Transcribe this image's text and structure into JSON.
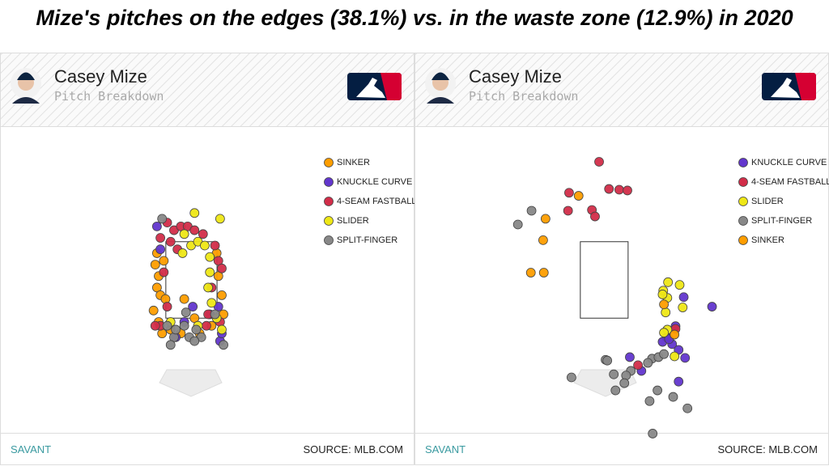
{
  "title": "Mize's pitches on the edges (38.1%) vs. in the waste zone (12.9%) in 2020",
  "chart_data": [
    {
      "type": "scatter",
      "player": "Casey Mize",
      "subtitle": "Pitch Breakdown",
      "brand": "SAVANT",
      "source": "SOURCE: MLB.COM",
      "xlim": [
        -5.6,
        6.5
      ],
      "ylim": [
        -1.5,
        6.5
      ],
      "zone": {
        "x": [
          -0.74,
          0.76
        ],
        "y": [
          1.5,
          3.5
        ]
      },
      "series": [
        {
          "name": "SINKER",
          "color": "#fe9d00",
          "x": [
            -1.0,
            -1.05,
            -0.95,
            -1.0,
            -0.9,
            -1.1,
            -0.95,
            -0.8,
            -0.75,
            -0.6,
            -0.3,
            0.25,
            0.6,
            0.8,
            0.9,
            0.75,
            -0.2,
            0.1,
            0.95,
            -0.85
          ],
          "y": [
            3.2,
            2.9,
            2.6,
            2.3,
            2.1,
            1.7,
            1.4,
            3.0,
            2.0,
            1.2,
            1.1,
            1.1,
            1.3,
            2.6,
            2.1,
            3.2,
            2.0,
            1.5,
            1.6,
            1.1
          ]
        },
        {
          "name": "KNUCKLE CURVE",
          "color": "#6236cd",
          "x": [
            -1.0,
            -0.9,
            0.05,
            -0.2,
            0.55,
            0.8,
            0.85,
            -0.45,
            0.9
          ],
          "y": [
            3.9,
            3.3,
            1.8,
            1.4,
            1.6,
            1.8,
            0.9,
            1.0,
            1.1
          ]
        },
        {
          "name": "4-SEAM FASTBALL",
          "color": "#d22d49",
          "x": [
            -0.7,
            -0.5,
            -0.3,
            -0.1,
            0.1,
            0.35,
            -0.6,
            -0.9,
            0.7,
            0.8,
            0.9,
            -0.8,
            -0.9,
            -1.05,
            0.6,
            0.85,
            0.45,
            -0.4,
            0.5,
            -0.7
          ],
          "y": [
            4.0,
            3.8,
            3.9,
            3.9,
            3.8,
            3.7,
            3.5,
            3.6,
            3.4,
            3.0,
            2.8,
            2.7,
            1.3,
            1.3,
            2.3,
            1.4,
            1.3,
            3.3,
            1.6,
            1.8
          ]
        },
        {
          "name": "SLIDER",
          "color": "#eee716",
          "x": [
            0.1,
            0.85,
            -0.2,
            0.0,
            0.2,
            0.4,
            -0.25,
            0.55,
            0.55,
            0.5,
            0.6,
            0.75,
            0.2,
            -0.6,
            0.9
          ],
          "y": [
            4.25,
            4.1,
            3.7,
            3.4,
            3.5,
            3.4,
            3.2,
            3.1,
            2.7,
            2.3,
            1.9,
            1.5,
            1.3,
            1.4,
            1.2
          ]
        },
        {
          "name": "SPLIT-FINGER",
          "color": "#888888",
          "x": [
            -0.85,
            -0.7,
            -0.5,
            -0.45,
            -0.2,
            -0.05,
            0.15,
            0.3,
            -0.6,
            0.1,
            0.95,
            0.7,
            -0.15
          ],
          "y": [
            4.1,
            1.3,
            1.0,
            1.2,
            1.3,
            1.0,
            1.2,
            1.0,
            0.8,
            0.9,
            0.8,
            1.6,
            1.65
          ]
        }
      ]
    },
    {
      "type": "scatter",
      "player": "Casey Mize",
      "subtitle": "Pitch Breakdown",
      "brand": "SAVANT",
      "source": "SOURCE: MLB.COM",
      "xlim": [
        -5.6,
        6.5
      ],
      "ylim": [
        -1.5,
        6.5
      ],
      "zone": {
        "x": [
          -0.74,
          0.66
        ],
        "y": [
          1.5,
          3.5
        ]
      },
      "series": [
        {
          "name": "KNUCKLE CURVE",
          "color": "#6236cd",
          "x": [
            2.29,
            3.12,
            2.05,
            1.79,
            1.67,
            1.95,
            2.14,
            2.33,
            0.71,
            1.05,
            2.14,
            1.86
          ],
          "y": [
            2.05,
            1.8,
            1.29,
            0.99,
            0.88,
            0.82,
            0.67,
            0.46,
            0.48,
            0.12,
            -0.16,
            0.95
          ]
        },
        {
          "name": "4-SEAM FASTBALL",
          "color": "#d22d49",
          "x": [
            -0.19,
            -1.07,
            0.1,
            0.4,
            0.64,
            -1.1,
            -0.4,
            -0.31,
            0.95,
            2.05
          ],
          "y": [
            5.59,
            4.78,
            4.88,
            4.86,
            4.84,
            4.31,
            4.33,
            4.16,
            0.27,
            1.22
          ]
        },
        {
          "name": "SLIDER",
          "color": "#eee716",
          "x": [
            1.83,
            2.17,
            1.69,
            1.81,
            2.26,
            1.76,
            1.81,
            1.71,
            2.02,
            1.67
          ],
          "y": [
            2.44,
            2.37,
            2.22,
            2.03,
            1.78,
            1.65,
            1.2,
            1.12,
            0.5,
            2.12
          ]
        },
        {
          "name": "SPLIT-FINGER",
          "color": "#888888",
          "x": [
            -2.17,
            -2.57,
            0,
            0.05,
            1.36,
            1.24,
            1.55,
            1.71,
            0.74,
            0.6,
            0.24,
            -1,
            0.55,
            0.29,
            1.52,
            1.29,
            1.98,
            2.4,
            1.38
          ],
          "y": [
            4.31,
            3.95,
            0.41,
            0.39,
            0.44,
            0.33,
            0.48,
            0.56,
            0.12,
            0,
            0.03,
            -0.05,
            -0.2,
            -0.39,
            -0.39,
            -0.67,
            -0.56,
            -0.86,
            -1.52
          ]
        },
        {
          "name": "SINKER",
          "color": "#fe9d00",
          "x": [
            -1.76,
            -0.79,
            -1.83,
            -2.19,
            -1.81,
            1.71,
            2.02
          ],
          "y": [
            4.1,
            4.7,
            3.54,
            2.69,
            2.69,
            1.86,
            1.07
          ]
        }
      ]
    }
  ]
}
